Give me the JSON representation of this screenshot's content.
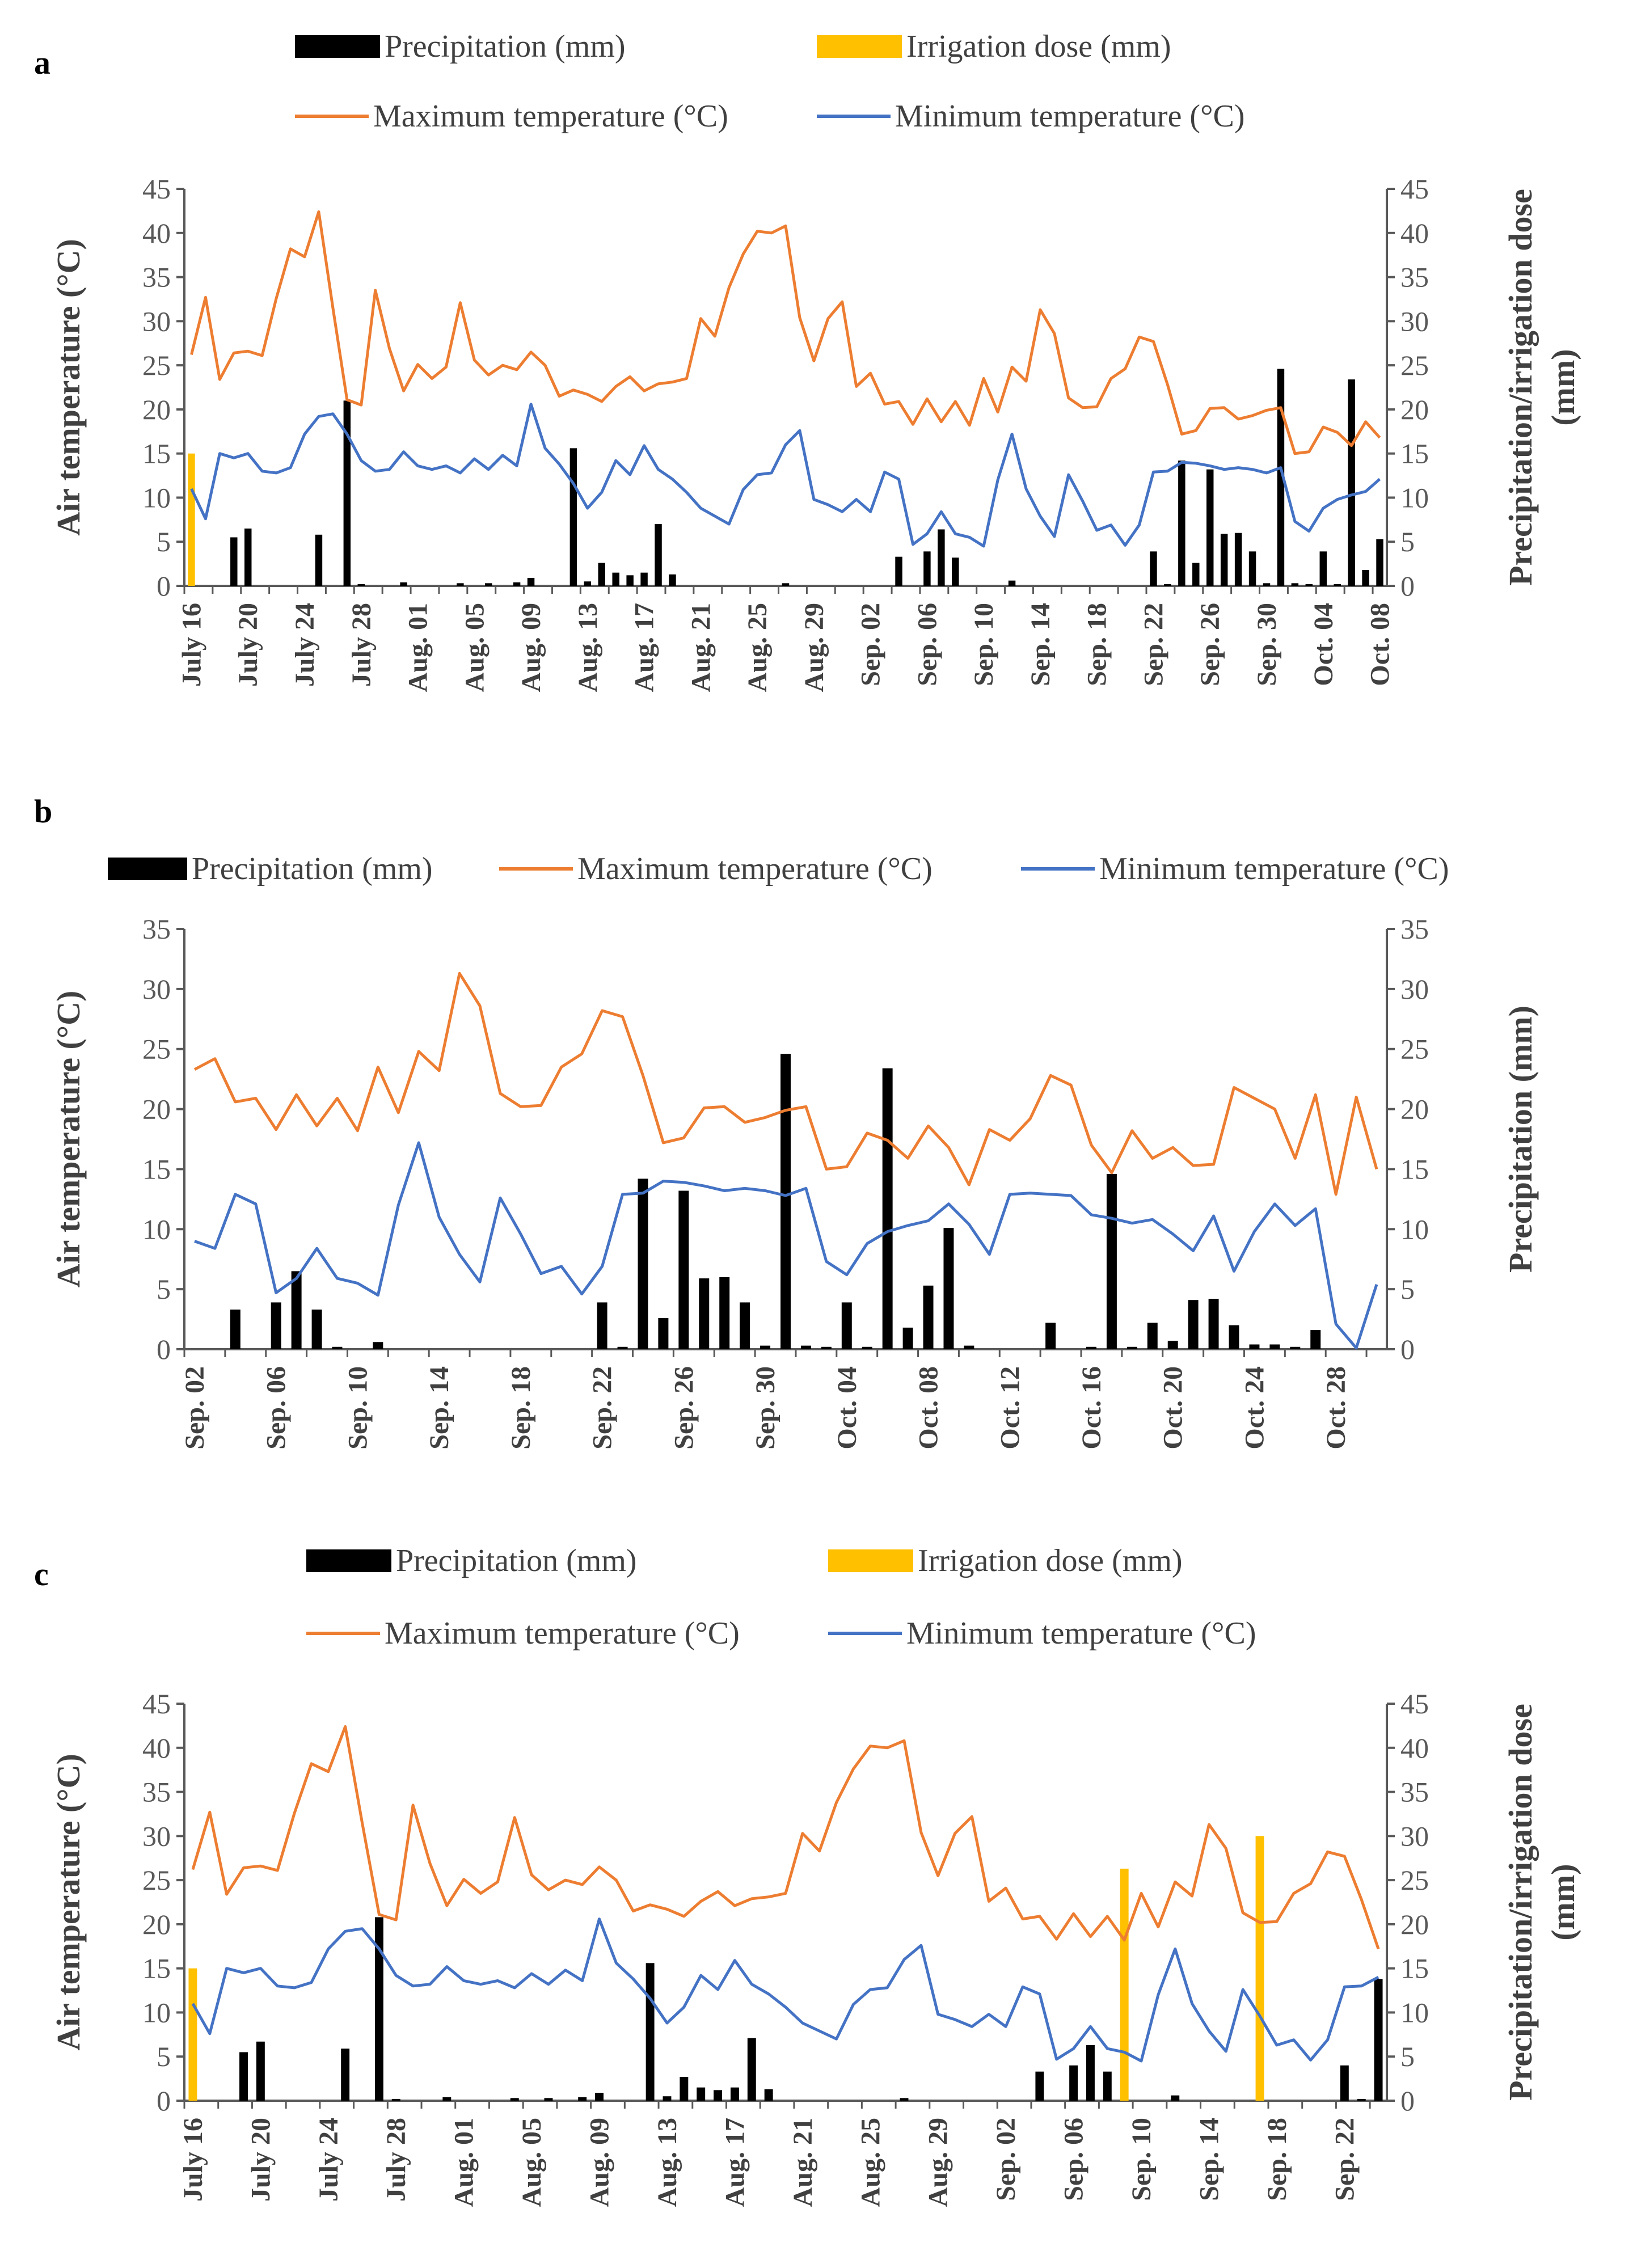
{
  "figure": {
    "colors": {
      "precip": "#000000",
      "irrigation": "#FFC000",
      "tmax": "#ED7D31",
      "tmin": "#4472C4",
      "axis": "#595959",
      "text": "#404040"
    }
  },
  "chart_data": [
    {
      "type": "line",
      "panel_label": "a",
      "legend": {
        "precip": "Precipitation (mm)",
        "irrigation": "Irrigation dose (mm)",
        "tmax": "Maximum temperature (°C)",
        "tmin": "Minimum temperature (°C)"
      },
      "ylabel": "Air temperature (°C)",
      "y2label": [
        "Precipitation/irrigation dose",
        "(mm)"
      ],
      "ylim": [
        0,
        45
      ],
      "y2lim": [
        0,
        45
      ],
      "yticks": [
        0,
        5,
        10,
        15,
        20,
        25,
        30,
        35,
        40,
        45
      ],
      "y2ticks": [
        0,
        5,
        10,
        15,
        20,
        25,
        30,
        35,
        40,
        45
      ],
      "x_count": 85,
      "xtick_labels": [
        "July 16",
        "July 20",
        "July 24",
        "July 28",
        "Aug. 01",
        "Aug. 05",
        "Aug. 09",
        "Aug. 13",
        "Aug. 17",
        "Aug. 21",
        "Aug. 25",
        "Aug. 29",
        "Sep. 02",
        "Sep. 06",
        "Sep. 10",
        "Sep. 14",
        "Sep. 18",
        "Sep. 22",
        "Sep. 26",
        "Sep. 30",
        "Oct. 04",
        "Oct. 08"
      ],
      "tmax": [
        26.2,
        32.7,
        23.4,
        26.4,
        26.6,
        26.1,
        32.6,
        38.2,
        37.3,
        42.4,
        31.5,
        21.1,
        20.5,
        33.5,
        26.9,
        22.1,
        25.1,
        23.5,
        24.8,
        32.1,
        25.6,
        23.9,
        25.0,
        24.5,
        26.5,
        25.0,
        21.5,
        22.2,
        21.7,
        20.9,
        22.6,
        23.7,
        22.1,
        22.9,
        23.1,
        23.5,
        30.3,
        28.3,
        33.8,
        37.6,
        40.2,
        40.0,
        40.8,
        30.4,
        25.5,
        30.3,
        32.2,
        22.6,
        24.1,
        20.6,
        20.9,
        18.3,
        21.2,
        18.6,
        20.9,
        18.2,
        23.5,
        19.7,
        24.8,
        23.2,
        31.3,
        28.6,
        21.3,
        20.2,
        20.3,
        23.5,
        24.6,
        28.2,
        27.7,
        22.8,
        17.2,
        17.6,
        20.1,
        20.2,
        18.9,
        19.3,
        19.9,
        20.2,
        15.0,
        15.2,
        18.0,
        17.4,
        15.9,
        18.6,
        16.8
      ],
      "tmin": [
        11.0,
        7.6,
        15.0,
        14.5,
        15.0,
        13.0,
        12.8,
        13.4,
        17.2,
        19.2,
        19.5,
        17.2,
        14.2,
        13.0,
        13.2,
        15.2,
        13.6,
        13.2,
        13.6,
        12.8,
        14.4,
        13.2,
        14.8,
        13.6,
        20.6,
        15.6,
        13.8,
        11.6,
        8.8,
        10.6,
        14.2,
        12.6,
        15.9,
        13.2,
        12.1,
        10.6,
        8.8,
        7.9,
        7.0,
        10.9,
        12.6,
        12.8,
        16.0,
        17.6,
        9.8,
        9.2,
        8.4,
        9.8,
        8.4,
        12.9,
        12.1,
        4.7,
        5.9,
        8.4,
        5.9,
        5.5,
        4.5,
        12.0,
        17.2,
        11.0,
        7.9,
        5.6,
        12.6,
        9.6,
        6.3,
        6.9,
        4.6,
        6.9,
        12.9,
        13.0,
        14.0,
        13.9,
        13.6,
        13.2,
        13.4,
        13.2,
        12.8,
        13.4,
        7.3,
        6.2,
        8.8,
        9.8,
        10.3,
        10.7,
        12.1
      ],
      "precip": [
        0,
        0,
        0,
        5.5,
        6.5,
        0,
        0,
        0,
        0,
        5.8,
        0,
        21.0,
        0.2,
        0,
        0,
        0.4,
        0,
        0,
        0,
        0.3,
        0,
        0.3,
        0,
        0.4,
        0.9,
        0,
        0,
        15.6,
        0.5,
        2.6,
        1.5,
        1.2,
        1.5,
        7.0,
        1.3,
        0,
        0,
        0,
        0,
        0,
        0,
        0,
        0.3,
        0,
        0,
        0,
        0,
        0,
        0,
        0,
        3.3,
        0,
        3.9,
        6.4,
        3.2,
        0,
        0,
        0,
        0.6,
        0,
        0,
        0,
        0,
        0,
        0,
        0,
        0,
        0,
        3.9,
        0.2,
        14.2,
        2.6,
        13.2,
        5.9,
        6.0,
        3.9,
        0.3,
        24.6,
        0.3,
        0.2,
        3.9,
        0.2,
        23.4,
        1.8,
        5.3
      ],
      "irrigation": [
        15.0,
        0,
        0,
        0,
        0,
        0,
        0,
        0,
        0,
        0,
        0,
        0,
        0,
        0,
        0,
        0,
        0,
        0,
        0,
        0,
        0,
        0,
        0,
        0,
        0,
        0,
        0,
        0,
        0,
        0,
        0,
        0,
        0,
        0,
        0,
        0,
        0,
        0,
        0,
        0,
        0,
        0,
        0,
        0,
        0,
        0,
        0,
        0,
        0,
        0,
        0,
        0,
        0,
        0,
        0,
        0,
        0,
        0,
        0,
        0,
        0,
        0,
        0,
        0,
        0,
        0,
        0,
        0,
        0,
        0,
        0,
        0,
        0,
        0,
        0,
        0,
        0,
        0,
        0,
        0,
        0,
        0,
        0,
        0,
        0
      ]
    },
    {
      "type": "line",
      "panel_label": "b",
      "legend": {
        "precip": "Precipitation (mm)",
        "tmax": "Maximum temperature (°C)",
        "tmin": "Minimum temperature (°C)"
      },
      "ylabel": "Air temperature (°C)",
      "y2label": [
        "Precipitation (mm)"
      ],
      "ylim": [
        0,
        35
      ],
      "y2lim": [
        0,
        35
      ],
      "yticks": [
        0,
        5,
        10,
        15,
        20,
        25,
        30,
        35
      ],
      "y2ticks": [
        0,
        5,
        10,
        15,
        20,
        25,
        30,
        35
      ],
      "x_count": 59,
      "xtick_labels": [
        "Sep. 02",
        "Sep. 06",
        "Sep. 10",
        "Sep. 14",
        "Sep. 18",
        "Sep. 22",
        "Sep. 26",
        "Sep. 30",
        "Oct. 04",
        "Oct. 08",
        "Oct. 12",
        "Oct. 16",
        "Oct. 20",
        "Oct. 24",
        "Oct. 28"
      ],
      "tmax": [
        23.3,
        24.2,
        20.6,
        20.9,
        18.3,
        21.2,
        18.6,
        20.9,
        18.2,
        23.5,
        19.7,
        24.8,
        23.2,
        31.3,
        28.6,
        21.3,
        20.2,
        20.3,
        23.5,
        24.6,
        28.2,
        27.7,
        22.8,
        17.2,
        17.6,
        20.1,
        20.2,
        18.9,
        19.3,
        19.9,
        20.2,
        15.0,
        15.2,
        18.0,
        17.4,
        15.9,
        18.6,
        16.8,
        13.7,
        18.3,
        17.4,
        19.2,
        22.8,
        22.0,
        17.0,
        14.7,
        18.2,
        15.9,
        16.8,
        15.3,
        15.4,
        21.8,
        20.9,
        20.0,
        15.9,
        21.2,
        12.9,
        21.0,
        15.0
      ],
      "tmin": [
        9.0,
        8.4,
        12.9,
        12.1,
        4.7,
        5.9,
        8.4,
        5.9,
        5.5,
        4.5,
        12.0,
        17.2,
        11.0,
        7.9,
        5.6,
        12.6,
        9.6,
        6.3,
        6.9,
        4.6,
        6.9,
        12.9,
        13.0,
        14.0,
        13.9,
        13.6,
        13.2,
        13.4,
        13.2,
        12.8,
        13.4,
        7.3,
        6.2,
        8.8,
        9.8,
        10.3,
        10.7,
        12.1,
        10.4,
        7.9,
        12.9,
        13.0,
        12.9,
        12.8,
        11.2,
        10.9,
        10.5,
        10.8,
        9.6,
        8.2,
        11.1,
        6.5,
        9.8,
        12.1,
        10.3,
        11.7,
        2.1,
        0.1,
        5.4
      ],
      "precip": [
        0,
        0,
        3.3,
        0,
        3.9,
        6.5,
        3.3,
        0.2,
        0,
        0.6,
        0,
        0,
        0,
        0,
        0,
        0,
        0,
        0,
        0,
        0,
        3.9,
        0.2,
        14.2,
        2.6,
        13.2,
        5.9,
        6.0,
        3.9,
        0.3,
        24.6,
        0.3,
        0.2,
        3.9,
        0.2,
        23.4,
        1.8,
        5.3,
        10.1,
        0.3,
        0,
        0,
        0,
        2.2,
        0,
        0.2,
        14.6,
        0.2,
        2.2,
        0.7,
        4.1,
        4.2,
        2.0,
        0.4,
        0.4,
        0.2,
        1.6,
        0,
        0,
        0
      ]
    },
    {
      "type": "line",
      "panel_label": "c",
      "legend": {
        "precip": "Precipitation (mm)",
        "irrigation": "Irrigation dose (mm)",
        "tmax": "Maximum temperature (°C)",
        "tmin": "Minimum temperature (°C)"
      },
      "ylabel": "Air temperature (°C)",
      "y2label": [
        "Precipitation/irrigation dose",
        "(mm)"
      ],
      "ylim": [
        0,
        45
      ],
      "y2lim": [
        0,
        45
      ],
      "yticks": [
        0,
        5,
        10,
        15,
        20,
        25,
        30,
        35,
        40,
        45
      ],
      "y2ticks": [
        0,
        5,
        10,
        15,
        20,
        25,
        30,
        35,
        40,
        45
      ],
      "x_count": 71,
      "xtick_labels": [
        "July 16",
        "July 20",
        "July 24",
        "July 28",
        "Aug. 01",
        "Aug. 05",
        "Aug. 09",
        "Aug. 13",
        "Aug. 17",
        "Aug. 21",
        "Aug. 25",
        "Aug. 29",
        "Sep. 02",
        "Sep. 06",
        "Sep. 10",
        "Sep. 14",
        "Sep. 18",
        "Sep. 22"
      ],
      "tmax": [
        26.2,
        32.7,
        23.4,
        26.4,
        26.6,
        26.1,
        32.6,
        38.2,
        37.3,
        42.4,
        31.5,
        21.1,
        20.5,
        33.5,
        26.9,
        22.1,
        25.1,
        23.5,
        24.8,
        32.1,
        25.6,
        23.9,
        25.0,
        24.5,
        26.5,
        25.0,
        21.5,
        22.2,
        21.7,
        20.9,
        22.6,
        23.7,
        22.1,
        22.9,
        23.1,
        23.5,
        30.3,
        28.3,
        33.8,
        37.6,
        40.2,
        40.0,
        40.8,
        30.4,
        25.5,
        30.3,
        32.2,
        22.6,
        24.1,
        20.6,
        20.9,
        18.3,
        21.2,
        18.6,
        20.9,
        18.2,
        23.5,
        19.7,
        24.8,
        23.2,
        31.3,
        28.6,
        21.3,
        20.2,
        20.3,
        23.5,
        24.6,
        28.2,
        27.7,
        22.8,
        17.2
      ],
      "tmin": [
        11.0,
        7.6,
        15.0,
        14.5,
        15.0,
        13.0,
        12.8,
        13.4,
        17.2,
        19.2,
        19.5,
        17.2,
        14.2,
        13.0,
        13.2,
        15.2,
        13.6,
        13.2,
        13.6,
        12.8,
        14.4,
        13.2,
        14.8,
        13.6,
        20.6,
        15.6,
        13.8,
        11.6,
        8.8,
        10.6,
        14.2,
        12.6,
        15.9,
        13.2,
        12.1,
        10.6,
        8.8,
        7.9,
        7.0,
        10.9,
        12.6,
        12.8,
        16.0,
        17.6,
        9.8,
        9.2,
        8.4,
        9.8,
        8.4,
        12.9,
        12.1,
        4.7,
        5.9,
        8.4,
        5.9,
        5.5,
        4.5,
        12.0,
        17.2,
        11.0,
        7.9,
        5.6,
        12.6,
        9.6,
        6.3,
        6.9,
        4.6,
        6.9,
        12.9,
        13.0,
        14.0
      ],
      "precip": [
        0,
        0,
        0,
        5.5,
        6.7,
        0,
        0,
        0,
        0,
        5.9,
        0,
        20.8,
        0.2,
        0,
        0,
        0.4,
        0,
        0,
        0,
        0.3,
        0,
        0.3,
        0,
        0.4,
        0.9,
        0,
        0,
        15.6,
        0.5,
        2.7,
        1.5,
        1.2,
        1.5,
        7.1,
        1.3,
        0,
        0,
        0,
        0,
        0,
        0,
        0,
        0.3,
        0,
        0,
        0,
        0,
        0,
        0,
        0,
        3.3,
        0,
        4.0,
        6.3,
        3.3,
        0,
        0,
        0,
        0.6,
        0,
        0,
        0,
        0,
        0,
        0,
        0,
        0,
        0,
        4.0,
        0.2,
        13.8
      ],
      "irrigation": [
        15.0,
        0,
        0,
        0,
        0,
        0,
        0,
        0,
        0,
        0,
        0,
        0,
        0,
        0,
        0,
        0,
        0,
        0,
        0,
        0,
        0,
        0,
        0,
        0,
        0,
        0,
        0,
        0,
        0,
        0,
        0,
        0,
        0,
        0,
        0,
        0,
        0,
        0,
        0,
        0,
        0,
        0,
        0,
        0,
        0,
        0,
        0,
        0,
        0,
        0,
        0,
        0,
        0,
        0,
        0,
        26.3,
        0,
        0,
        0,
        0,
        0,
        0,
        0,
        30.0,
        0,
        0,
        0,
        0,
        0,
        0,
        0
      ]
    }
  ]
}
